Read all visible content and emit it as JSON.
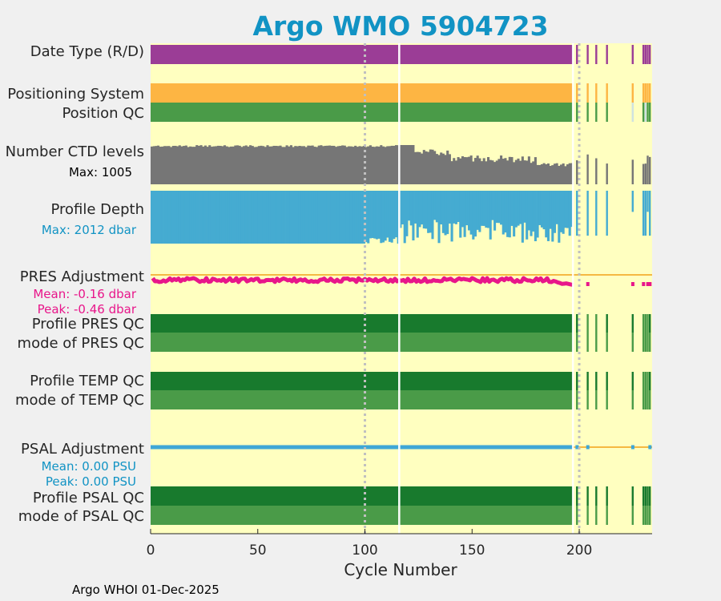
{
  "chart_data": {
    "type": "status-timeline",
    "title": "Argo WMO 5904723",
    "xlabel": "Cycle Number",
    "xlim": [
      0,
      234
    ],
    "xticks": [
      0,
      50,
      100,
      150,
      200
    ],
    "footer": "Argo WHOI 01-Dec-2025",
    "rows": [
      {
        "key": "data_type",
        "label": "Date Type (R/D)",
        "kind": "band",
        "color": "#9b3d96"
      },
      {
        "key": "pos_system",
        "label": "Positioning System",
        "kind": "band",
        "color": "#fdb543"
      },
      {
        "key": "pos_qc",
        "label": "Position QC",
        "kind": "band",
        "color": "#4a9b48"
      },
      {
        "key": "ctd_levels",
        "label": "Number CTD levels",
        "kind": "levels",
        "color": "#767676",
        "sublabel": "Max: 1005",
        "sublabel_color": "#000000",
        "max": 1005,
        "segments": [
          {
            "start": 1,
            "end": 116,
            "value": 1005
          },
          {
            "start": 117,
            "end": 123,
            "value": 990
          },
          {
            "start": 124,
            "end": 140,
            "value": 720
          },
          {
            "start": 141,
            "end": 160,
            "value": 660
          },
          {
            "start": 161,
            "end": 180,
            "value": 600
          },
          {
            "start": 181,
            "end": 197,
            "value": 560
          }
        ]
      },
      {
        "key": "profile_depth",
        "label": "Profile Depth",
        "kind": "depth",
        "color": "#45abd1",
        "sublabel": "Max: 2012 dbar",
        "sublabel_color": "#1193c4",
        "max": 2012
      },
      {
        "key": "pres_adj",
        "label": "PRES Adjustment",
        "kind": "adjustment",
        "color": "#e8168a",
        "line_color": "#f5b942",
        "stats": [
          "Mean: -0.16 dbar",
          "Peak: -0.46 dbar"
        ],
        "stats_color": "#e8168a",
        "mean": -0.16,
        "peak": -0.46
      },
      {
        "key": "prof_pres_qc",
        "label": "Profile PRES QC",
        "kind": "band",
        "color": "#187a2d"
      },
      {
        "key": "mode_pres_qc",
        "label": "mode of PRES QC",
        "kind": "band",
        "color": "#4a9b48"
      },
      {
        "key": "prof_temp_qc",
        "label": "Profile TEMP QC",
        "kind": "band",
        "color": "#187a2d"
      },
      {
        "key": "mode_temp_qc",
        "label": "mode of TEMP QC",
        "kind": "band",
        "color": "#4a9b48"
      },
      {
        "key": "psal_adj",
        "label": "PSAL Adjustment",
        "kind": "adjustment",
        "color": "#3fa7d6",
        "line_color": "#f5b942",
        "stats": [
          "Mean: 0.00 PSU",
          "Peak: 0.00 PSU"
        ],
        "stats_color": "#1193c4",
        "mean": 0.0,
        "peak": 0.0
      },
      {
        "key": "prof_psal_qc",
        "label": "Profile PSAL QC",
        "kind": "band",
        "color": "#187a2d"
      },
      {
        "key": "mode_psal_qc",
        "label": "mode of PSAL QC",
        "kind": "band",
        "color": "#4a9b48"
      }
    ],
    "continuous_range": [
      0,
      197
    ],
    "gap_cycles": [
      116
    ],
    "late_cycles": [
      199,
      204,
      208,
      213,
      225,
      230,
      231,
      232,
      233
    ],
    "reference_lines": [
      100,
      200
    ],
    "background_color": "#ffffc0",
    "bad_qc_color": "#cfe2e0"
  }
}
